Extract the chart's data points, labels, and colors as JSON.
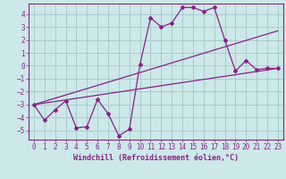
{
  "bg_color": "#cce8e8",
  "line_color": "#882288",
  "grid_color": "#aacccc",
  "xlabel": "Windchill (Refroidissement éolien,°C)",
  "xlim": [
    -0.5,
    23.5
  ],
  "ylim": [
    -5.7,
    4.8
  ],
  "yticks": [
    -5,
    -4,
    -3,
    -2,
    -1,
    0,
    1,
    2,
    3,
    4
  ],
  "xticks": [
    0,
    1,
    2,
    3,
    4,
    5,
    6,
    7,
    8,
    9,
    10,
    11,
    12,
    13,
    14,
    15,
    16,
    17,
    18,
    19,
    20,
    21,
    22,
    23
  ],
  "line1_x": [
    0,
    1,
    2,
    3,
    4,
    5,
    6,
    7,
    8,
    9,
    10,
    11,
    12,
    13,
    14,
    15,
    16,
    17,
    18,
    19,
    20,
    21,
    22,
    23
  ],
  "line1_y": [
    -3.0,
    -4.2,
    -3.4,
    -2.7,
    -4.8,
    -4.7,
    -2.6,
    -3.7,
    -5.4,
    -4.9,
    0.1,
    3.7,
    3.0,
    3.3,
    4.5,
    4.5,
    4.2,
    4.5,
    2.0,
    -0.4,
    0.4,
    -0.3,
    -0.2,
    -0.2
  ],
  "line2_x": [
    0,
    23
  ],
  "line2_y": [
    -3.0,
    2.7
  ],
  "line3_x": [
    0,
    23
  ],
  "line3_y": [
    -3.0,
    -0.2
  ]
}
